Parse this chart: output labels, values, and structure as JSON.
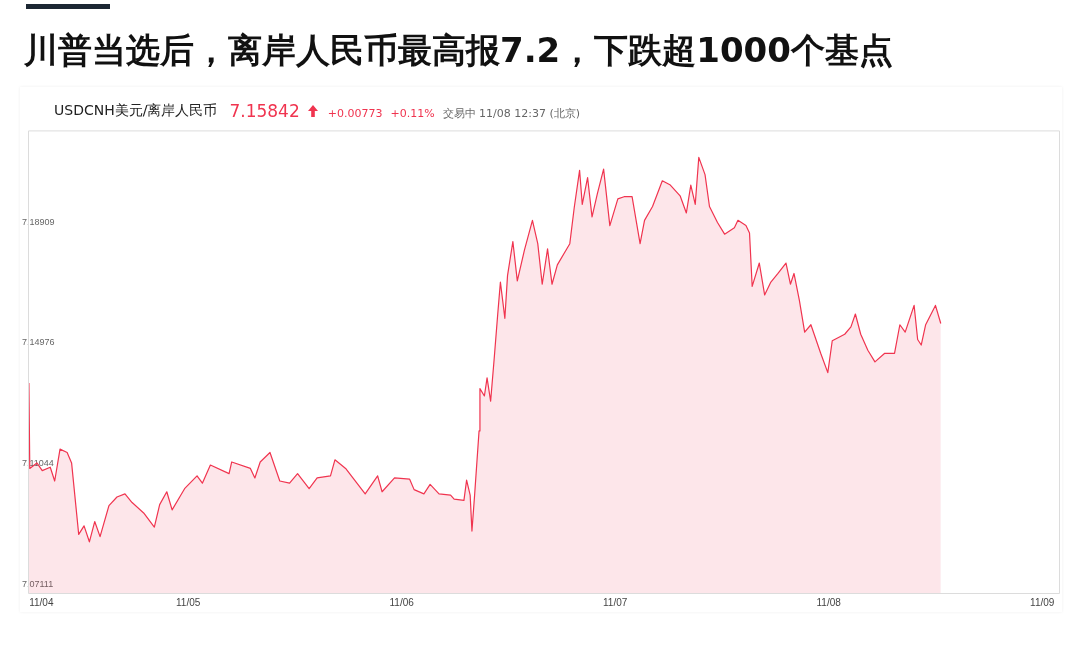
{
  "chart_data": {
    "type": "area",
    "title": "川普当选后，离岸人民币最高报7.2，下跌超1000个基点",
    "subtitle": "USDCNH美元/离岸人民币",
    "annotations": [
      "7.15842",
      "+0.00773",
      "+0.11%",
      "交易中 11/08 12:37 (北京)"
    ],
    "color": "#f0344f",
    "x": [
      "--11-04T06:06",
      "--11-04T06:12",
      "--11-04T07:00",
      "--11-04T07:36",
      "--11-04T08:30",
      "--11-04T09:00",
      "--11-04T09:36",
      "--11-04T10:24",
      "--11-04T10:54",
      "--11-04T11:42",
      "--11-04T12:18",
      "--11-04T12:54",
      "--11-04T13:30",
      "--11-04T14:06",
      "--11-04T15:06",
      "--11-04T16:00",
      "--11-04T16:54",
      "--11-04T17:42",
      "--11-04T19:00",
      "--11-04T20:12",
      "--11-04T20:48",
      "--11-04T21:36",
      "--11-04T22:12",
      "--11-04T23:36",
      "--11-05T01:00",
      "--11-05T01:36",
      "--11-05T02:30",
      "--11-05T04:36",
      "--11-05T04:54",
      "--11-05T07:00",
      "--11-05T07:30",
      "--11-05T08:06",
      "--11-05T09:12",
      "--11-05T10:18",
      "--11-05T11:24",
      "--11-05T12:18",
      "--11-05T13:36",
      "--11-05T14:30",
      "--11-05T16:00",
      "--11-05T16:30",
      "--11-05T17:42",
      "--11-05T19:54",
      "--11-05T21:18",
      "--11-05T21:48",
      "--11-05T23:12",
      "--11-06T00:54",
      "--11-06T01:24",
      "--11-06T02:30",
      "--11-06T03:12",
      "--11-06T04:12",
      "--11-06T05:30",
      "--11-06T05:54",
      "--11-06T07:00",
      "--11-06T07:18",
      "--11-06T07:42",
      "--11-06T07:54",
      "--11-06T08:12",
      "--11-06T08:42",
      "--11-06T08:48",
      "--11-06T09:18",
      "--11-06T09:36",
      "--11-06T10:00",
      "--11-06T10:24",
      "--11-06T10:48",
      "--11-06T11:06",
      "--11-06T11:36",
      "--11-06T11:54",
      "--11-06T12:30",
      "--11-06T13:00",
      "--11-06T13:48",
      "--11-06T14:42",
      "--11-06T15:18",
      "--11-06T15:48",
      "--11-06T16:24",
      "--11-06T16:54",
      "--11-06T17:30",
      "--11-06T18:54",
      "--11-06T19:24",
      "--11-06T20:00",
      "--11-06T20:18",
      "--11-06T20:54",
      "--11-06T21:24",
      "--11-06T22:00",
      "--11-06T22:42",
      "--11-06T23:24",
      "--11-07T00:18",
      "--11-07T01:00",
      "--11-07T01:54",
      "--11-07T02:48",
      "--11-07T03:18",
      "--11-07T04:12",
      "--11-07T05:18",
      "--11-07T06:12",
      "--11-07T07:18",
      "--11-07T08:00",
      "--11-07T08:30",
      "--11-07T09:00",
      "--11-07T09:24",
      "--11-07T10:06",
      "--11-07T10:36",
      "--11-07T11:30",
      "--11-07T12:18",
      "--11-07T13:24",
      "--11-07T13:48",
      "--11-07T14:42",
      "--11-07T15:06",
      "--11-07T15:24",
      "--11-07T16:12",
      "--11-07T16:48",
      "--11-07T17:30",
      "--11-07T18:18",
      "--11-07T19:12",
      "--11-07T19:42",
      "--11-07T20:06",
      "--11-07T20:42",
      "--11-07T21:18",
      "--11-07T22:00",
      "--11-07T23:06",
      "--11-07T23:54",
      "--11-08T00:24",
      "--11-08T01:48",
      "--11-08T02:30",
      "--11-08T03:00",
      "--11-08T03:36",
      "--11-08T04:24",
      "--11-08T05:12",
      "--11-08T06:18",
      "--11-08T07:24",
      "--11-08T08:00",
      "--11-08T08:36",
      "--11-08T09:36",
      "--11-08T10:00",
      "--11-08T10:24",
      "--11-08T10:54",
      "--11-08T12:00",
      "--11-08T12:36"
    ],
    "values": [
      7.1367,
      7.1089,
      7.1107,
      7.1082,
      7.1093,
      7.1048,
      7.1152,
      7.1141,
      7.1107,
      7.0874,
      7.0902,
      7.085,
      7.0916,
      7.0867,
      7.0968,
      7.0996,
      7.1006,
      7.0978,
      7.0944,
      7.0898,
      7.0971,
      7.1013,
      7.0954,
      7.1023,
      7.1065,
      7.1041,
      7.11,
      7.1072,
      7.111,
      7.1089,
      7.1058,
      7.111,
      7.1141,
      7.1048,
      7.1041,
      7.1072,
      7.1023,
      7.1058,
      7.1065,
      7.1117,
      7.1089,
      7.1006,
      7.1065,
      7.1013,
      7.1058,
      7.1054,
      7.102,
      7.1006,
      7.1037,
      7.1006,
      7.1002,
      7.0989,
      7.0985,
      7.1051,
      7.1002,
      7.0885,
      7.1002,
      7.1211,
      7.1349,
      7.1325,
      7.1384,
      7.1308,
      7.1446,
      7.1592,
      7.1696,
      7.1578,
      7.1717,
      7.1828,
      7.17,
      7.18,
      7.1897,
      7.1821,
      7.1689,
      7.1804,
      7.1689,
      7.1752,
      7.1821,
      7.1939,
      7.206,
      7.1949,
      7.2036,
      7.1908,
      7.1984,
      7.2064,
      7.188,
      7.1967,
      7.1974,
      7.1974,
      7.1821,
      7.1897,
      7.1942,
      7.2026,
      7.2012,
      7.1977,
      7.1921,
      7.2012,
      7.1949,
      7.2102,
      7.2046,
      7.1942,
      7.189,
      7.1852,
      7.1873,
      7.1897,
      7.188,
      7.1856,
      7.1682,
      7.1758,
      7.1654,
      7.1696,
      7.1724,
      7.1758,
      7.1689,
      7.1724,
      7.1637,
      7.1533,
      7.1557,
      7.1464,
      7.1401,
      7.1505,
      7.1526,
      7.155,
      7.1592,
      7.1526,
      7.1474,
      7.1436,
      7.1464,
      7.1464,
      7.1557,
      7.1533,
      7.162,
      7.1509,
      7.1491,
      7.1557,
      7.162,
      7.1561
    ],
    "xlim": [
      "--11-04T06:00",
      "--11-09T02:00"
    ],
    "xticks": [
      {
        "value": "--11-04T07:30",
        "label": "11/04"
      },
      {
        "value": "--11-05",
        "label": "11/05"
      },
      {
        "value": "--11-06",
        "label": "11/06"
      },
      {
        "value": "--11-07",
        "label": "11/07"
      },
      {
        "value": "--11-08",
        "label": "11/08"
      },
      {
        "value": "--11-09",
        "label": "11/09"
      }
    ],
    "ylim": [
      7.068,
      7.219
    ],
    "yticks": [
      7.07111,
      7.11044,
      7.14976,
      7.18909
    ]
  }
}
